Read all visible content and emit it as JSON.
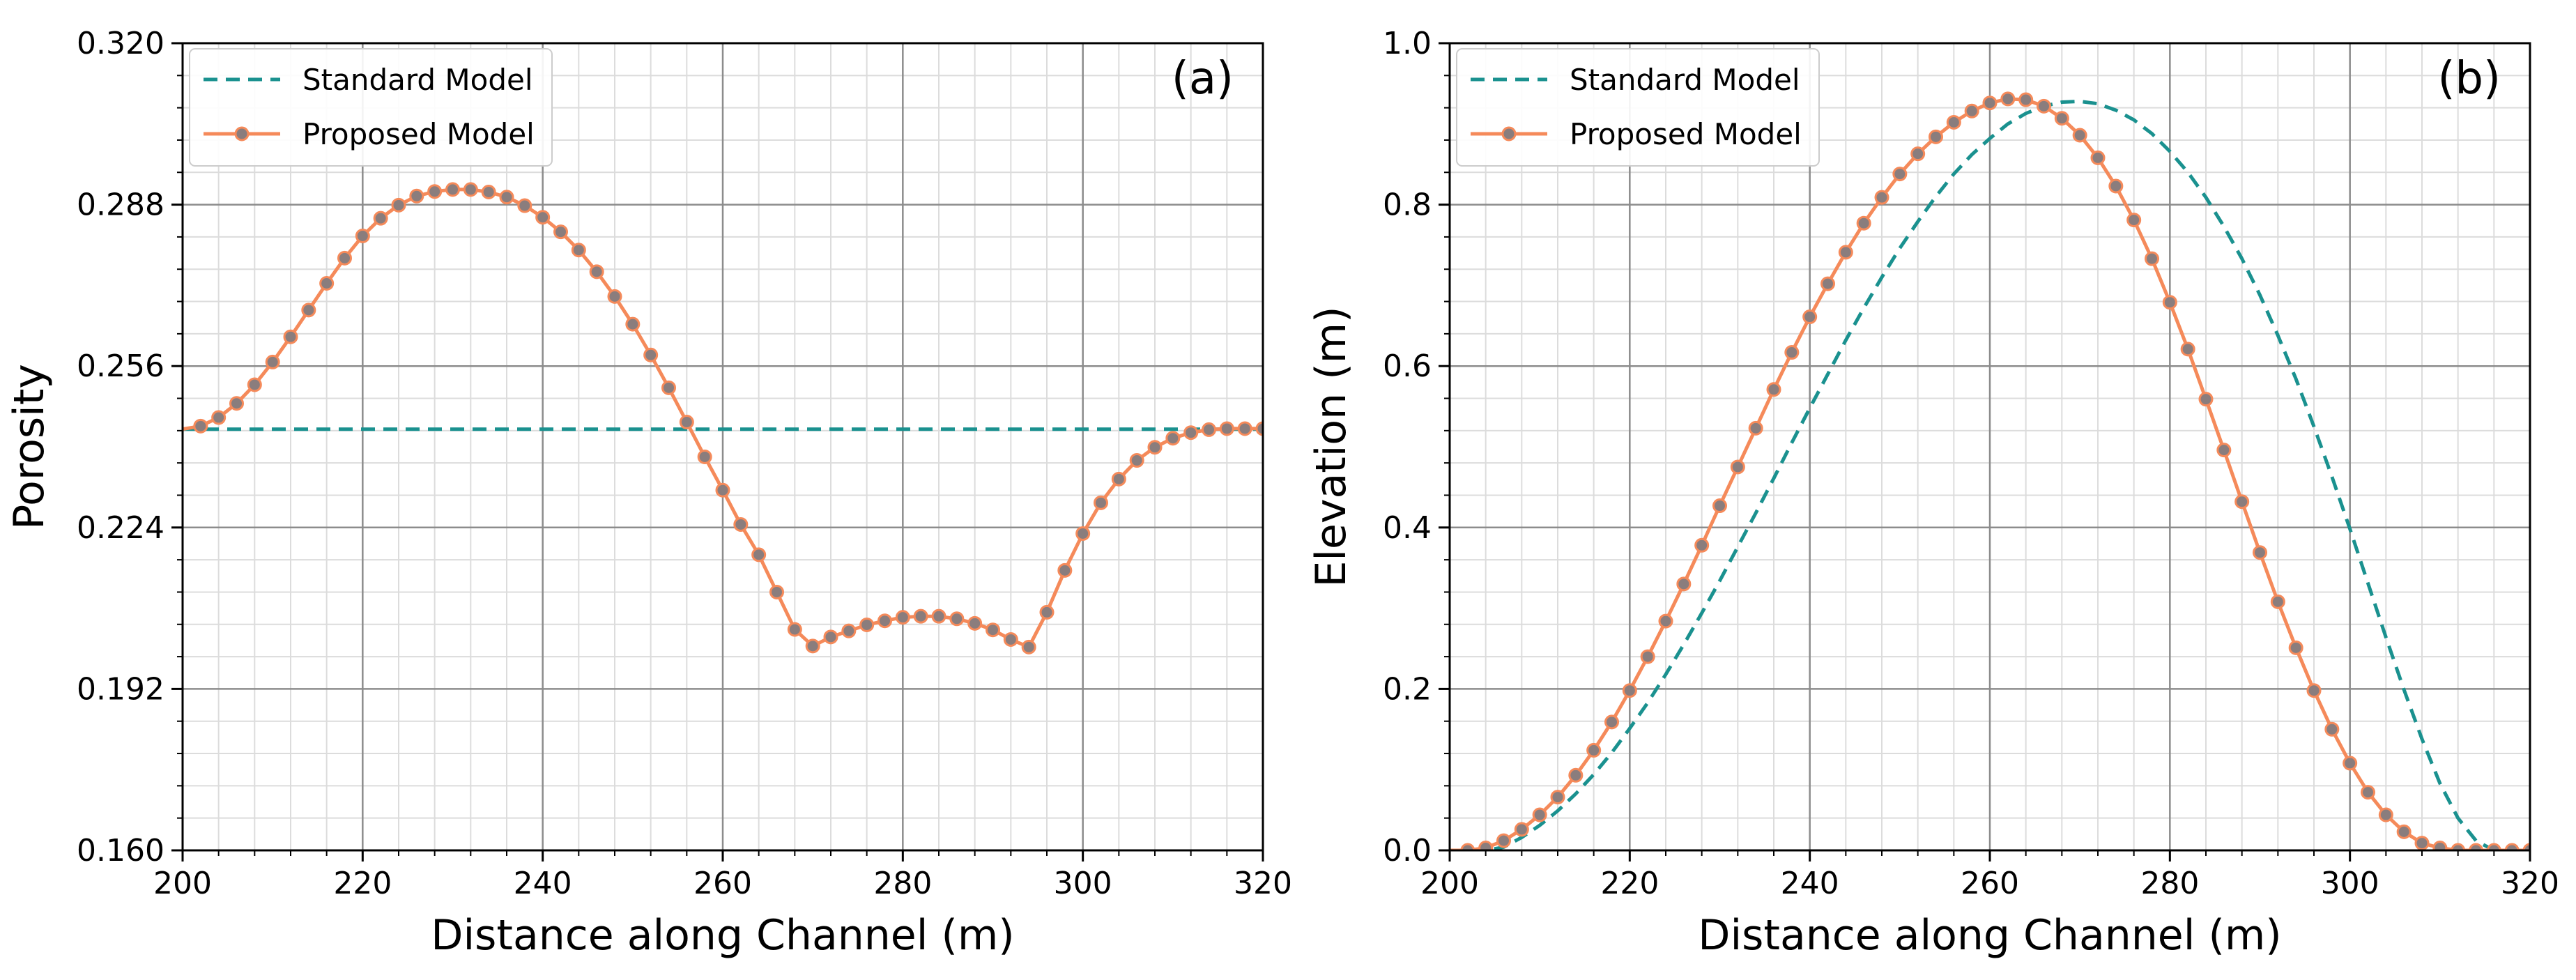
{
  "figure": {
    "colors": {
      "standard": "#1a918f",
      "proposed_line": "#f58a5a",
      "proposed_marker": "#8a7d7d",
      "grid_major": "#8c8c8c",
      "grid_minor": "#dcdcdc",
      "axes": "#000000"
    }
  },
  "chart_data": [
    {
      "type": "line",
      "panel_label": "(a)",
      "xlabel": "Distance along Channel (m)",
      "ylabel": "Porosity",
      "xlim": [
        200,
        320
      ],
      "ylim": [
        0.16,
        0.32
      ],
      "x_ticks": [
        200,
        220,
        240,
        260,
        280,
        300,
        320
      ],
      "x_tick_labels": [
        "200",
        "220",
        "240",
        "260",
        "280",
        "300",
        "320"
      ],
      "y_ticks": [
        0.16,
        0.192,
        0.224,
        0.256,
        0.288,
        0.32
      ],
      "y_tick_labels": [
        "0.160",
        "0.192",
        "0.224",
        "0.256",
        "0.288",
        "0.320"
      ],
      "x_minor_step": 4,
      "y_minor_step": 0.0064,
      "grid": true,
      "legend": {
        "position": "top-left",
        "entries": [
          "Standard Model",
          "Proposed Model"
        ]
      },
      "series": [
        {
          "name": "Standard Model",
          "style": "dashed",
          "x": [
            200,
            320
          ],
          "y": [
            0.2435,
            0.2435
          ]
        },
        {
          "name": "Proposed Model",
          "style": "solid-markers",
          "x": [
            200,
            202,
            204,
            206,
            208,
            210,
            212,
            214,
            216,
            218,
            220,
            222,
            224,
            226,
            228,
            230,
            232,
            234,
            236,
            238,
            240,
            242,
            244,
            246,
            248,
            250,
            252,
            254,
            256,
            258,
            260,
            262,
            264,
            266,
            268,
            270,
            272,
            274,
            276,
            278,
            280,
            282,
            284,
            286,
            288,
            290,
            292,
            294,
            296,
            298,
            300,
            302,
            304,
            306,
            308,
            310,
            312,
            314,
            316,
            318,
            320
          ],
          "y": [
            0.2435,
            0.2441,
            0.2458,
            0.2486,
            0.2523,
            0.2568,
            0.2618,
            0.2671,
            0.2724,
            0.2774,
            0.2818,
            0.2853,
            0.2879,
            0.2897,
            0.2906,
            0.291,
            0.291,
            0.2905,
            0.2895,
            0.2878,
            0.2855,
            0.2826,
            0.279,
            0.2747,
            0.2698,
            0.2643,
            0.2582,
            0.2517,
            0.2449,
            0.238,
            0.2314,
            0.2246,
            0.2186,
            0.2112,
            0.2038,
            0.2005,
            0.2023,
            0.2035,
            0.2047,
            0.2055,
            0.2062,
            0.2064,
            0.2064,
            0.2059,
            0.205,
            0.2037,
            0.2018,
            0.2003,
            0.2072,
            0.2155,
            0.2228,
            0.2289,
            0.2336,
            0.2373,
            0.2399,
            0.2417,
            0.2428,
            0.2434,
            0.2436,
            0.2436,
            0.2436
          ]
        }
      ]
    },
    {
      "type": "line",
      "panel_label": "(b)",
      "xlabel": "Distance along Channel (m)",
      "ylabel": "Elevation (m)",
      "xlim": [
        200,
        320
      ],
      "ylim": [
        0.0,
        1.0
      ],
      "x_ticks": [
        200,
        220,
        240,
        260,
        280,
        300,
        320
      ],
      "x_tick_labels": [
        "200",
        "220",
        "240",
        "260",
        "280",
        "300",
        "320"
      ],
      "y_ticks": [
        0.0,
        0.2,
        0.4,
        0.6,
        0.8,
        1.0
      ],
      "y_tick_labels": [
        "0.0",
        "0.2",
        "0.4",
        "0.6",
        "0.8",
        "1.0"
      ],
      "x_minor_step": 4,
      "y_minor_step": 0.04,
      "grid": true,
      "legend": {
        "position": "top-left",
        "entries": [
          "Standard Model",
          "Proposed Model"
        ]
      },
      "series": [
        {
          "name": "Standard Model",
          "style": "dashed",
          "x": [
            200,
            202,
            204,
            206,
            208,
            210,
            212,
            214,
            216,
            218,
            220,
            222,
            224,
            226,
            228,
            230,
            232,
            234,
            236,
            238,
            240,
            242,
            244,
            246,
            248,
            250,
            252,
            254,
            256,
            258,
            260,
            262,
            264,
            266,
            268,
            270,
            272,
            274,
            276,
            278,
            280,
            282,
            284,
            286,
            288,
            290,
            292,
            294,
            296,
            298,
            300,
            302,
            304,
            306,
            308,
            310,
            312,
            314,
            316,
            318,
            320
          ],
          "y": [
            0.0,
            0.0,
            0.0,
            0.004,
            0.016,
            0.031,
            0.049,
            0.07,
            0.094,
            0.121,
            0.151,
            0.183,
            0.218,
            0.255,
            0.294,
            0.334,
            0.376,
            0.418,
            0.461,
            0.505,
            0.548,
            0.59,
            0.632,
            0.672,
            0.71,
            0.746,
            0.779,
            0.81,
            0.838,
            0.862,
            0.882,
            0.9,
            0.913,
            0.922,
            0.927,
            0.928,
            0.925,
            0.917,
            0.905,
            0.888,
            0.866,
            0.84,
            0.809,
            0.773,
            0.733,
            0.688,
            0.638,
            0.584,
            0.525,
            0.463,
            0.398,
            0.331,
            0.264,
            0.199,
            0.138,
            0.083,
            0.04,
            0.012,
            0.0,
            0.0,
            0.0
          ]
        },
        {
          "name": "Proposed Model",
          "style": "solid-markers",
          "x": [
            200,
            202,
            204,
            206,
            208,
            210,
            212,
            214,
            216,
            218,
            220,
            222,
            224,
            226,
            228,
            230,
            232,
            234,
            236,
            238,
            240,
            242,
            244,
            246,
            248,
            250,
            252,
            254,
            256,
            258,
            260,
            262,
            264,
            266,
            268,
            270,
            272,
            274,
            276,
            278,
            280,
            282,
            284,
            286,
            288,
            290,
            292,
            294,
            296,
            298,
            300,
            302,
            304,
            306,
            308,
            310,
            312,
            314,
            316,
            318,
            320
          ],
          "y": [
            0.0,
            0.0,
            0.003,
            0.012,
            0.026,
            0.044,
            0.066,
            0.093,
            0.124,
            0.159,
            0.198,
            0.24,
            0.284,
            0.33,
            0.378,
            0.427,
            0.475,
            0.523,
            0.571,
            0.617,
            0.661,
            0.702,
            0.741,
            0.777,
            0.809,
            0.838,
            0.863,
            0.884,
            0.902,
            0.916,
            0.926,
            0.931,
            0.93,
            0.922,
            0.907,
            0.886,
            0.858,
            0.823,
            0.781,
            0.733,
            0.679,
            0.621,
            0.559,
            0.496,
            0.432,
            0.369,
            0.308,
            0.251,
            0.198,
            0.15,
            0.108,
            0.072,
            0.044,
            0.023,
            0.009,
            0.003,
            0.0,
            0.0,
            0.0,
            0.0,
            0.0
          ]
        }
      ]
    }
  ]
}
